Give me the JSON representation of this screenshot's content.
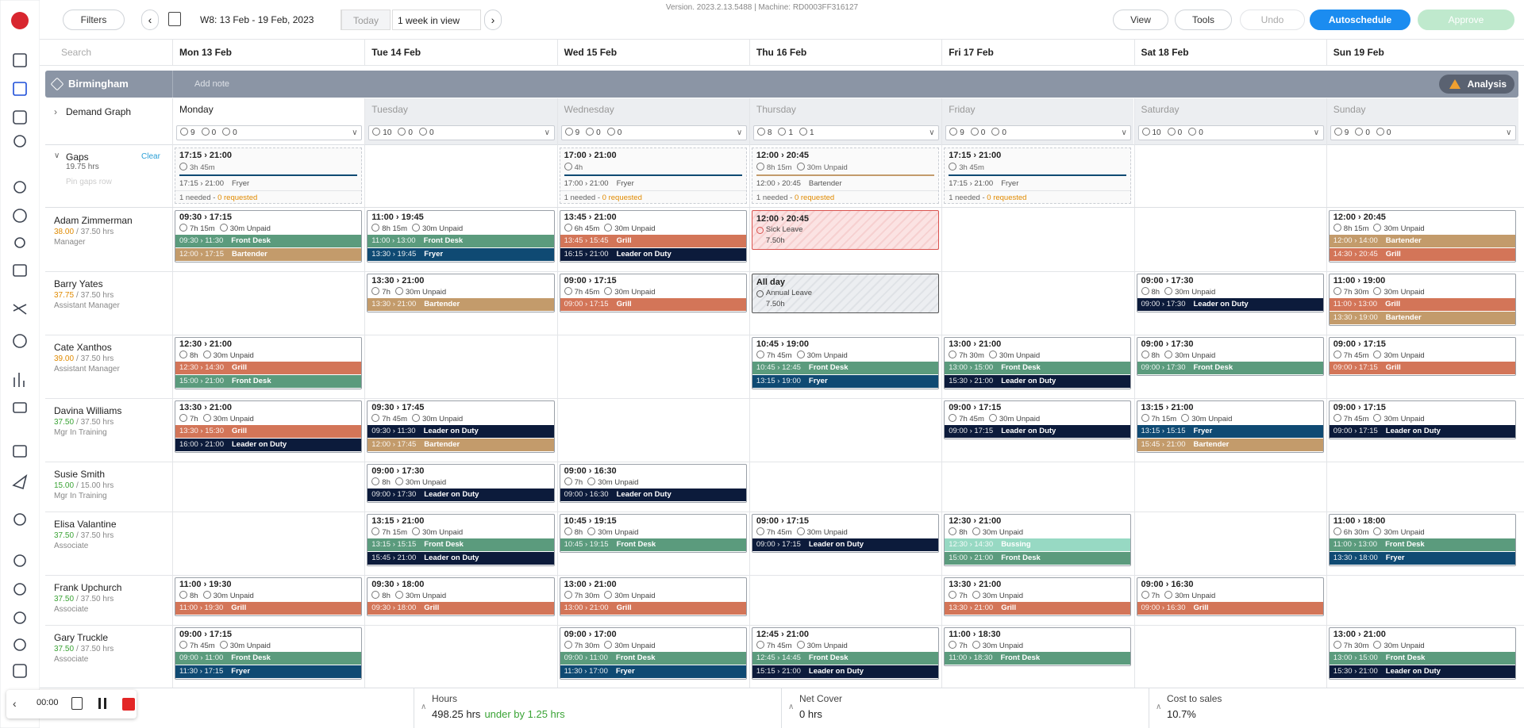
{
  "toolbar": {
    "filters": "Filters",
    "week": "W8: 13 Feb - 19 Feb, 2023",
    "today": "Today",
    "range": "1 week in view",
    "version": "Version. 2023.2.13.5488 | Machine: RD0003FF316127",
    "view": "View",
    "tools": "Tools",
    "undo": "Undo",
    "autoschedule": "Autoschedule",
    "approve": "Approve"
  },
  "search": "Search",
  "days": [
    "Mon 13 Feb",
    "Tue 14 Feb",
    "Wed 15 Feb",
    "Thu 16 Feb",
    "Fri 17 Feb",
    "Sat 18 Feb",
    "Sun 19 Feb"
  ],
  "location": {
    "name": "Birmingham",
    "note": "Add note",
    "analysis": "Analysis"
  },
  "demand": {
    "label": "Demand Graph",
    "day_names": [
      "Monday",
      "Tuesday",
      "Wednesday",
      "Thursday",
      "Friday",
      "Saturday",
      "Sunday"
    ],
    "counts": [
      [
        9,
        0,
        0
      ],
      [
        10,
        0,
        0
      ],
      [
        9,
        0,
        0
      ],
      [
        8,
        1,
        1
      ],
      [
        9,
        0,
        0
      ],
      [
        10,
        0,
        0
      ],
      [
        9,
        0,
        0
      ]
    ]
  },
  "gaps": {
    "label": "Gaps",
    "hours": "19.75 hrs",
    "clear": "Clear",
    "pin": "Pin gaps row",
    "days": [
      {
        "time": "17:15 › 21:00",
        "duration": "3h 45m",
        "slot": "17:15 › 21:00",
        "role": "Fryer",
        "needed": "1 needed",
        "requested": "0 requested"
      },
      null,
      {
        "time": "17:00 › 21:00",
        "duration": "4h",
        "slot": "17:00 › 21:00",
        "role": "Fryer",
        "needed": "1 needed",
        "requested": "0 requested"
      },
      {
        "time": "12:00 › 20:45",
        "duration": "8h 15m",
        "break": "30m Unpaid",
        "slot": "12:00 › 20:45",
        "role": "Bartender",
        "needed": "1 needed",
        "requested": "0 requested"
      },
      {
        "time": "17:15 › 21:00",
        "duration": "3h 45m",
        "slot": "17:15 › 21:00",
        "role": "Fryer",
        "needed": "1 needed",
        "requested": "0 requested"
      },
      null,
      null
    ]
  },
  "role_colors": {
    "Front Desk": "#5b9b7d",
    "Bartender": "#c39b6b",
    "Fryer": "#0f4a73",
    "Grill": "#d37558",
    "Leader on Duty": "#0c1b3b",
    "Bussing": "#97d9c3"
  },
  "employees": [
    {
      "name": "Adam Zimmerman",
      "hours": "38.00",
      "contract": "/ 37.50 hrs",
      "hours_color": "#e08a00",
      "role": "Manager",
      "shifts": [
        {
          "time": "09:30 › 17:15",
          "duration": "7h 15m",
          "break": "30m Unpaid",
          "tasks": [
            {
              "time": "09:30 › 11:30",
              "role": "Front Desk"
            },
            {
              "time": "12:00 › 17:15",
              "role": "Bartender"
            }
          ]
        },
        {
          "time": "11:00 › 19:45",
          "duration": "8h 15m",
          "break": "30m Unpaid",
          "tasks": [
            {
              "time": "11:00 › 13:00",
              "role": "Front Desk"
            },
            {
              "time": "13:30 › 19:45",
              "role": "Fryer"
            }
          ]
        },
        {
          "time": "13:45 › 21:00",
          "duration": "6h 45m",
          "break": "30m Unpaid",
          "tasks": [
            {
              "time": "13:45 › 15:45",
              "role": "Grill"
            },
            {
              "time": "16:15 › 21:00",
              "role": "Leader on Duty"
            }
          ]
        },
        {
          "time": "12:00 › 20:45",
          "leave": "Sick Leave",
          "hours": "7.50h",
          "kind": "sick"
        },
        null,
        null,
        {
          "time": "12:00 › 20:45",
          "duration": "8h 15m",
          "break": "30m Unpaid",
          "tasks": [
            {
              "time": "12:00 › 14:00",
              "role": "Bartender"
            },
            {
              "time": "14:30 › 20:45",
              "role": "Grill"
            }
          ]
        }
      ]
    },
    {
      "name": "Barry Yates",
      "hours": "37.75",
      "contract": "/ 37.50 hrs",
      "hours_color": "#e08a00",
      "role": "Assistant Manager",
      "shifts": [
        null,
        {
          "time": "13:30 › 21:00",
          "duration": "7h",
          "break": "30m Unpaid",
          "tasks": [
            {
              "time": "13:30 › 21:00",
              "role": "Bartender"
            }
          ]
        },
        {
          "time": "09:00 › 17:15",
          "duration": "7h 45m",
          "break": "30m Unpaid",
          "tasks": [
            {
              "time": "09:00 › 17:15",
              "role": "Grill"
            }
          ]
        },
        {
          "time": "All day",
          "leave": "Annual Leave",
          "hours": "7.50h",
          "kind": "annual"
        },
        null,
        {
          "time": "09:00 › 17:30",
          "duration": "8h",
          "break": "30m Unpaid",
          "tasks": [
            {
              "time": "09:00 › 17:30",
              "role": "Leader on Duty"
            }
          ]
        },
        {
          "time": "11:00 › 19:00",
          "duration": "7h 30m",
          "break": "30m Unpaid",
          "tasks": [
            {
              "time": "11:00 › 13:00",
              "role": "Grill"
            },
            {
              "time": "13:30 › 19:00",
              "role": "Bartender"
            }
          ]
        }
      ]
    },
    {
      "name": "Cate Xanthos",
      "hours": "39.00",
      "contract": "/ 37.50 hrs",
      "hours_color": "#e08a00",
      "role": "Assistant Manager",
      "shifts": [
        {
          "time": "12:30 › 21:00",
          "duration": "8h",
          "break": "30m Unpaid",
          "tasks": [
            {
              "time": "12:30 › 14:30",
              "role": "Grill"
            },
            {
              "time": "15:00 › 21:00",
              "role": "Front Desk"
            }
          ]
        },
        null,
        null,
        {
          "time": "10:45 › 19:00",
          "duration": "7h 45m",
          "break": "30m Unpaid",
          "tasks": [
            {
              "time": "10:45 › 12:45",
              "role": "Front Desk"
            },
            {
              "time": "13:15 › 19:00",
              "role": "Fryer"
            }
          ]
        },
        {
          "time": "13:00 › 21:00",
          "duration": "7h 30m",
          "break": "30m Unpaid",
          "tasks": [
            {
              "time": "13:00 › 15:00",
              "role": "Front Desk"
            },
            {
              "time": "15:30 › 21:00",
              "role": "Leader on Duty"
            }
          ]
        },
        {
          "time": "09:00 › 17:30",
          "duration": "8h",
          "break": "30m Unpaid",
          "tasks": [
            {
              "time": "09:00 › 17:30",
              "role": "Front Desk"
            }
          ]
        },
        {
          "time": "09:00 › 17:15",
          "duration": "7h 45m",
          "break": "30m Unpaid",
          "tasks": [
            {
              "time": "09:00 › 17:15",
              "role": "Grill"
            }
          ]
        }
      ]
    },
    {
      "name": "Davina Williams",
      "hours": "37.50",
      "contract": "/ 37.50 hrs",
      "hours_color": "#3aa335",
      "role": "Mgr In Training",
      "shifts": [
        {
          "time": "13:30 › 21:00",
          "duration": "7h",
          "break": "30m Unpaid",
          "tasks": [
            {
              "time": "13:30 › 15:30",
              "role": "Grill"
            },
            {
              "time": "16:00 › 21:00",
              "role": "Leader on Duty"
            }
          ]
        },
        {
          "time": "09:30 › 17:45",
          "duration": "7h 45m",
          "break": "30m Unpaid",
          "tasks": [
            {
              "time": "09:30 › 11:30",
              "role": "Leader on Duty"
            },
            {
              "time": "12:00 › 17:45",
              "role": "Bartender"
            }
          ]
        },
        null,
        null,
        {
          "time": "09:00 › 17:15",
          "duration": "7h 45m",
          "break": "30m Unpaid",
          "tasks": [
            {
              "time": "09:00 › 17:15",
              "role": "Leader on Duty"
            }
          ]
        },
        {
          "time": "13:15 › 21:00",
          "duration": "7h 15m",
          "break": "30m Unpaid",
          "tasks": [
            {
              "time": "13:15 › 15:15",
              "role": "Fryer"
            },
            {
              "time": "15:45 › 21:00",
              "role": "Bartender"
            }
          ]
        },
        {
          "time": "09:00 › 17:15",
          "duration": "7h 45m",
          "break": "30m Unpaid",
          "tasks": [
            {
              "time": "09:00 › 17:15",
              "role": "Leader on Duty"
            }
          ]
        }
      ]
    },
    {
      "name": "Susie Smith",
      "hours": "15.00",
      "contract": "/ 15.00 hrs",
      "hours_color": "#3aa335",
      "role": "Mgr In Training",
      "shifts": [
        null,
        {
          "time": "09:00 › 17:30",
          "duration": "8h",
          "break": "30m Unpaid",
          "tasks": [
            {
              "time": "09:00 › 17:30",
              "role": "Leader on Duty"
            }
          ]
        },
        {
          "time": "09:00 › 16:30",
          "duration": "7h",
          "break": "30m Unpaid",
          "tasks": [
            {
              "time": "09:00 › 16:30",
              "role": "Leader on Duty"
            }
          ]
        },
        null,
        null,
        null,
        null
      ]
    },
    {
      "name": "Elisa Valantine",
      "hours": "37.50",
      "contract": "/ 37.50 hrs",
      "hours_color": "#3aa335",
      "role": "Associate",
      "shifts": [
        null,
        {
          "time": "13:15 › 21:00",
          "duration": "7h 15m",
          "break": "30m Unpaid",
          "tasks": [
            {
              "time": "13:15 › 15:15",
              "role": "Front Desk"
            },
            {
              "time": "15:45 › 21:00",
              "role": "Leader on Duty"
            }
          ]
        },
        {
          "time": "10:45 › 19:15",
          "duration": "8h",
          "break": "30m Unpaid",
          "tasks": [
            {
              "time": "10:45 › 19:15",
              "role": "Front Desk"
            }
          ]
        },
        {
          "time": "09:00 › 17:15",
          "duration": "7h 45m",
          "break": "30m Unpaid",
          "tasks": [
            {
              "time": "09:00 › 17:15",
              "role": "Leader on Duty"
            }
          ]
        },
        {
          "time": "12:30 › 21:00",
          "duration": "8h",
          "break": "30m Unpaid",
          "tasks": [
            {
              "time": "12:30 › 14:30",
              "role": "Bussing"
            },
            {
              "time": "15:00 › 21:00",
              "role": "Front Desk"
            }
          ]
        },
        null,
        {
          "time": "11:00 › 18:00",
          "duration": "6h 30m",
          "break": "30m Unpaid",
          "tasks": [
            {
              "time": "11:00 › 13:00",
              "role": "Front Desk"
            },
            {
              "time": "13:30 › 18:00",
              "role": "Fryer"
            }
          ]
        }
      ]
    },
    {
      "name": "Frank Upchurch",
      "hours": "37.50",
      "contract": "/ 37.50 hrs",
      "hours_color": "#3aa335",
      "role": "Associate",
      "shifts": [
        {
          "time": "11:00 › 19:30",
          "duration": "8h",
          "break": "30m Unpaid",
          "tasks": [
            {
              "time": "11:00 › 19:30",
              "role": "Grill"
            }
          ]
        },
        {
          "time": "09:30 › 18:00",
          "duration": "8h",
          "break": "30m Unpaid",
          "tasks": [
            {
              "time": "09:30 › 18:00",
              "role": "Grill"
            }
          ]
        },
        {
          "time": "13:00 › 21:00",
          "duration": "7h 30m",
          "break": "30m Unpaid",
          "tasks": [
            {
              "time": "13:00 › 21:00",
              "role": "Grill"
            }
          ]
        },
        null,
        {
          "time": "13:30 › 21:00",
          "duration": "7h",
          "break": "30m Unpaid",
          "tasks": [
            {
              "time": "13:30 › 21:00",
              "role": "Grill"
            }
          ]
        },
        {
          "time": "09:00 › 16:30",
          "duration": "7h",
          "break": "30m Unpaid",
          "tasks": [
            {
              "time": "09:00 › 16:30",
              "role": "Grill"
            }
          ]
        },
        null
      ]
    },
    {
      "name": "Gary Truckle",
      "hours": "37.50",
      "contract": "/ 37.50 hrs",
      "hours_color": "#3aa335",
      "role": "Associate",
      "shifts": [
        {
          "time": "09:00 › 17:15",
          "duration": "7h 45m",
          "break": "30m Unpaid",
          "tasks": [
            {
              "time": "09:00 › 11:00",
              "role": "Front Desk"
            },
            {
              "time": "11:30 › 17:15",
              "role": "Fryer"
            }
          ]
        },
        null,
        {
          "time": "09:00 › 17:00",
          "duration": "7h 30m",
          "break": "30m Unpaid",
          "tasks": [
            {
              "time": "09:00 › 11:00",
              "role": "Front Desk"
            },
            {
              "time": "11:30 › 17:00",
              "role": "Fryer"
            }
          ]
        },
        {
          "time": "12:45 › 21:00",
          "duration": "7h 45m",
          "break": "30m Unpaid",
          "tasks": [
            {
              "time": "12:45 › 14:45",
              "role": "Front Desk"
            },
            {
              "time": "15:15 › 21:00",
              "role": "Leader on Duty"
            }
          ]
        },
        {
          "time": "11:00 › 18:30",
          "duration": "7h",
          "break": "30m Unpaid",
          "tasks": [
            {
              "time": "11:00 › 18:30",
              "role": "Front Desk"
            }
          ]
        },
        null,
        {
          "time": "13:00 › 21:00",
          "duration": "7h 30m",
          "break": "30m Unpaid",
          "tasks": [
            {
              "time": "13:00 › 15:00",
              "role": "Front Desk"
            },
            {
              "time": "15:30 › 21:00",
              "role": "Leader on Duty"
            }
          ]
        }
      ]
    }
  ],
  "footer": {
    "timer": "00:00",
    "hours": {
      "label": "Hours",
      "value": "498.25 hrs",
      "note": "under by 1.25 hrs"
    },
    "net_cover": {
      "label": "Net Cover",
      "value": "0 hrs"
    },
    "cost": {
      "label": "Cost to sales",
      "value": "10.7%"
    }
  }
}
